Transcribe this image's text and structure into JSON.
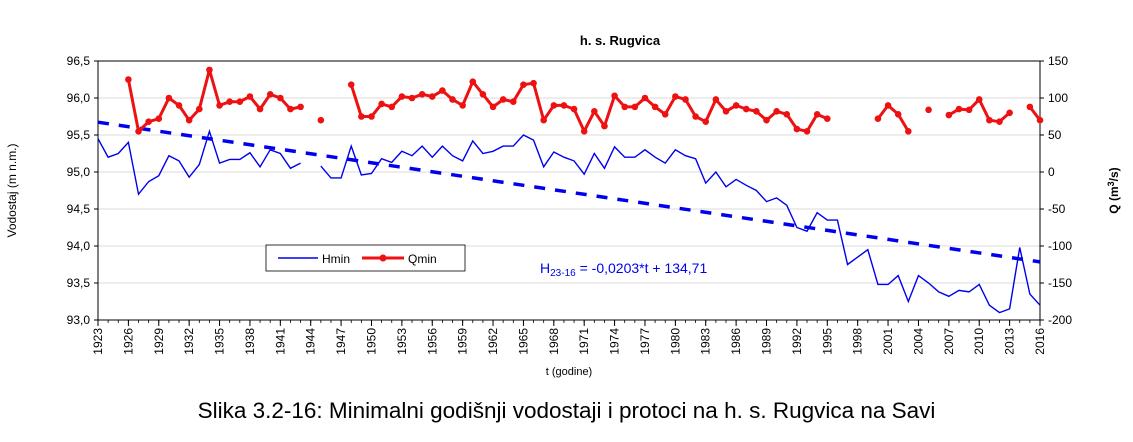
{
  "caption": "Slika 3.2-16:   Minimalni godišnji vodostaji i protoci na h. s. Rugvica na Savi",
  "chart_data": {
    "type": "line",
    "title": "h. s. Rugvica",
    "ylabel": "Vodostaj (m n.m.)",
    "y2label": {
      "prefix": "Q (m",
      "sup": "3",
      "suffix": "/s)"
    },
    "xlabel": "t (godine)",
    "xlim": [
      1923,
      2016
    ],
    "ylim": [
      93.0,
      96.5
    ],
    "y2lim": [
      -200,
      150
    ],
    "x_ticks": [
      "1923",
      "1926",
      "1929",
      "1932",
      "1935",
      "1938",
      "1941",
      "1944",
      "1947",
      "1950",
      "1953",
      "1956",
      "1959",
      "1962",
      "1965",
      "1968",
      "1971",
      "1974",
      "1977",
      "1980",
      "1983",
      "1986",
      "1989",
      "1992",
      "1995",
      "1998",
      "2001",
      "2004",
      "2007",
      "2010",
      "2013",
      "2016"
    ],
    "y_ticks": [
      "93,0",
      "93,5",
      "94,0",
      "94,5",
      "95,0",
      "95,5",
      "96,0",
      "96,5"
    ],
    "y2_ticks": [
      "-200",
      "-150",
      "-100",
      "-50",
      "0",
      "50",
      "100",
      "150"
    ],
    "legend": {
      "position": "lower-left",
      "hmin": "Hmin",
      "qmin": "Qmin"
    },
    "colors": {
      "hmin": "#0000ee",
      "qmin": "#ee1111",
      "trend": "#0000ee"
    },
    "trend": {
      "label_prefix": "H",
      "label_sub": "23-16",
      "label_rest": " = -0,0203*t + 134,71",
      "slope": -0.0203,
      "intercept": 134.71
    },
    "series": [
      {
        "name": "Hmin",
        "axis": "left",
        "x": [
          1923,
          1924,
          1925,
          1926,
          1927,
          1928,
          1929,
          1930,
          1931,
          1932,
          1933,
          1934,
          1935,
          1936,
          1937,
          1938,
          1939,
          1940,
          1941,
          1942,
          1943,
          1944,
          1945,
          1946,
          1947,
          1948,
          1949,
          1950,
          1951,
          1952,
          1953,
          1954,
          1955,
          1956,
          1957,
          1958,
          1959,
          1960,
          1961,
          1962,
          1963,
          1964,
          1965,
          1966,
          1967,
          1968,
          1969,
          1970,
          1971,
          1972,
          1973,
          1974,
          1975,
          1976,
          1977,
          1978,
          1979,
          1980,
          1981,
          1982,
          1983,
          1984,
          1985,
          1986,
          1987,
          1988,
          1989,
          1990,
          1991,
          1992,
          1993,
          1994,
          1995,
          1996,
          1997,
          1998,
          1999,
          2000,
          2001,
          2002,
          2003,
          2004,
          2005,
          2006,
          2007,
          2008,
          2009,
          2010,
          2011,
          2012,
          2013,
          2014,
          2015,
          2016
        ],
        "y": [
          95.45,
          95.2,
          95.25,
          95.4,
          94.7,
          94.87,
          94.95,
          95.22,
          95.15,
          94.93,
          95.1,
          95.55,
          95.12,
          95.17,
          95.17,
          95.26,
          95.07,
          95.3,
          95.25,
          95.05,
          95.12,
          null,
          95.08,
          94.92,
          94.92,
          95.35,
          94.96,
          94.98,
          95.18,
          95.13,
          95.28,
          95.22,
          95.35,
          95.2,
          95.35,
          95.22,
          95.15,
          95.42,
          95.25,
          95.28,
          95.35,
          95.35,
          95.5,
          95.43,
          95.07,
          95.27,
          95.2,
          95.15,
          94.97,
          95.25,
          95.05,
          95.34,
          95.2,
          95.2,
          95.3,
          95.2,
          95.12,
          95.3,
          95.22,
          95.18,
          94.85,
          95.0,
          94.8,
          94.9,
          94.82,
          94.75,
          94.6,
          94.65,
          94.55,
          94.25,
          94.2,
          94.45,
          94.35,
          94.35,
          93.75,
          93.85,
          93.95,
          93.48,
          93.48,
          93.6,
          93.25,
          93.6,
          93.5,
          93.38,
          93.32,
          93.4,
          93.38,
          93.48,
          93.2,
          93.1,
          93.15,
          93.98,
          93.35,
          93.2
        ]
      },
      {
        "name": "Qmin",
        "axis": "right",
        "x": [
          1923,
          1924,
          1925,
          1926,
          1927,
          1928,
          1929,
          1930,
          1931,
          1932,
          1933,
          1934,
          1935,
          1936,
          1937,
          1938,
          1939,
          1940,
          1941,
          1942,
          1943,
          1944,
          1945,
          1946,
          1947,
          1948,
          1949,
          1950,
          1951,
          1952,
          1953,
          1954,
          1955,
          1956,
          1957,
          1958,
          1959,
          1960,
          1961,
          1962,
          1963,
          1964,
          1965,
          1966,
          1967,
          1968,
          1969,
          1970,
          1971,
          1972,
          1973,
          1974,
          1975,
          1976,
          1977,
          1978,
          1979,
          1980,
          1981,
          1982,
          1983,
          1984,
          1985,
          1986,
          1987,
          1988,
          1989,
          1990,
          1991,
          1992,
          1993,
          1994,
          1995,
          1996,
          1997,
          1998,
          1999,
          2000,
          2001,
          2002,
          2003,
          2004,
          2005,
          2006,
          2007,
          2008,
          2009,
          2010,
          2011,
          2012,
          2013,
          2014,
          2015,
          2016
        ],
        "y": [
          null,
          null,
          null,
          125,
          55,
          68,
          72,
          100,
          90,
          70,
          85,
          138,
          90,
          95,
          95,
          102,
          85,
          105,
          100,
          85,
          88,
          null,
          70,
          null,
          null,
          118,
          75,
          75,
          92,
          88,
          102,
          100,
          105,
          102,
          110,
          98,
          90,
          122,
          105,
          88,
          98,
          95,
          118,
          120,
          70,
          90,
          90,
          85,
          55,
          82,
          62,
          103,
          88,
          88,
          100,
          88,
          78,
          102,
          98,
          75,
          68,
          98,
          82,
          90,
          85,
          82,
          70,
          82,
          78,
          58,
          55,
          78,
          72,
          null,
          null,
          null,
          null,
          72,
          90,
          78,
          55,
          null,
          84,
          null,
          77,
          85,
          84,
          98,
          70,
          68,
          80,
          null,
          88,
          70
        ]
      }
    ]
  }
}
